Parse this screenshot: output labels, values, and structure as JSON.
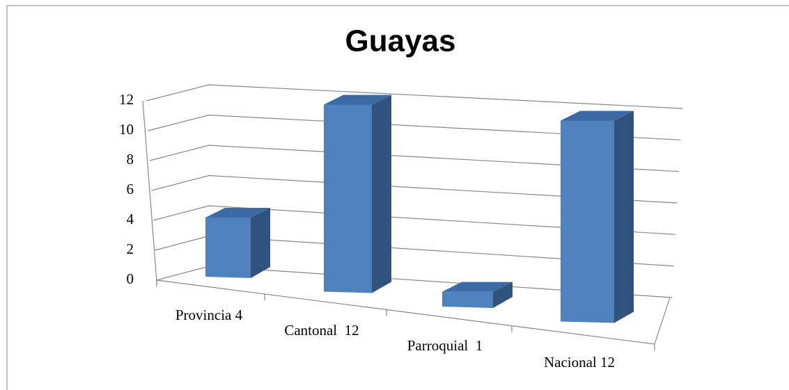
{
  "chart_data": {
    "type": "bar3d",
    "title": "Guayas",
    "categories": [
      "Provincia 4",
      "Cantonal  12",
      "Parroquial  1",
      "Nacional 12"
    ],
    "values": [
      4,
      12,
      1,
      12
    ],
    "color": "#4f81bd",
    "ylim": [
      0,
      12
    ],
    "yticks": [
      0,
      2,
      4,
      6,
      8,
      10,
      12
    ],
    "grid": true
  }
}
